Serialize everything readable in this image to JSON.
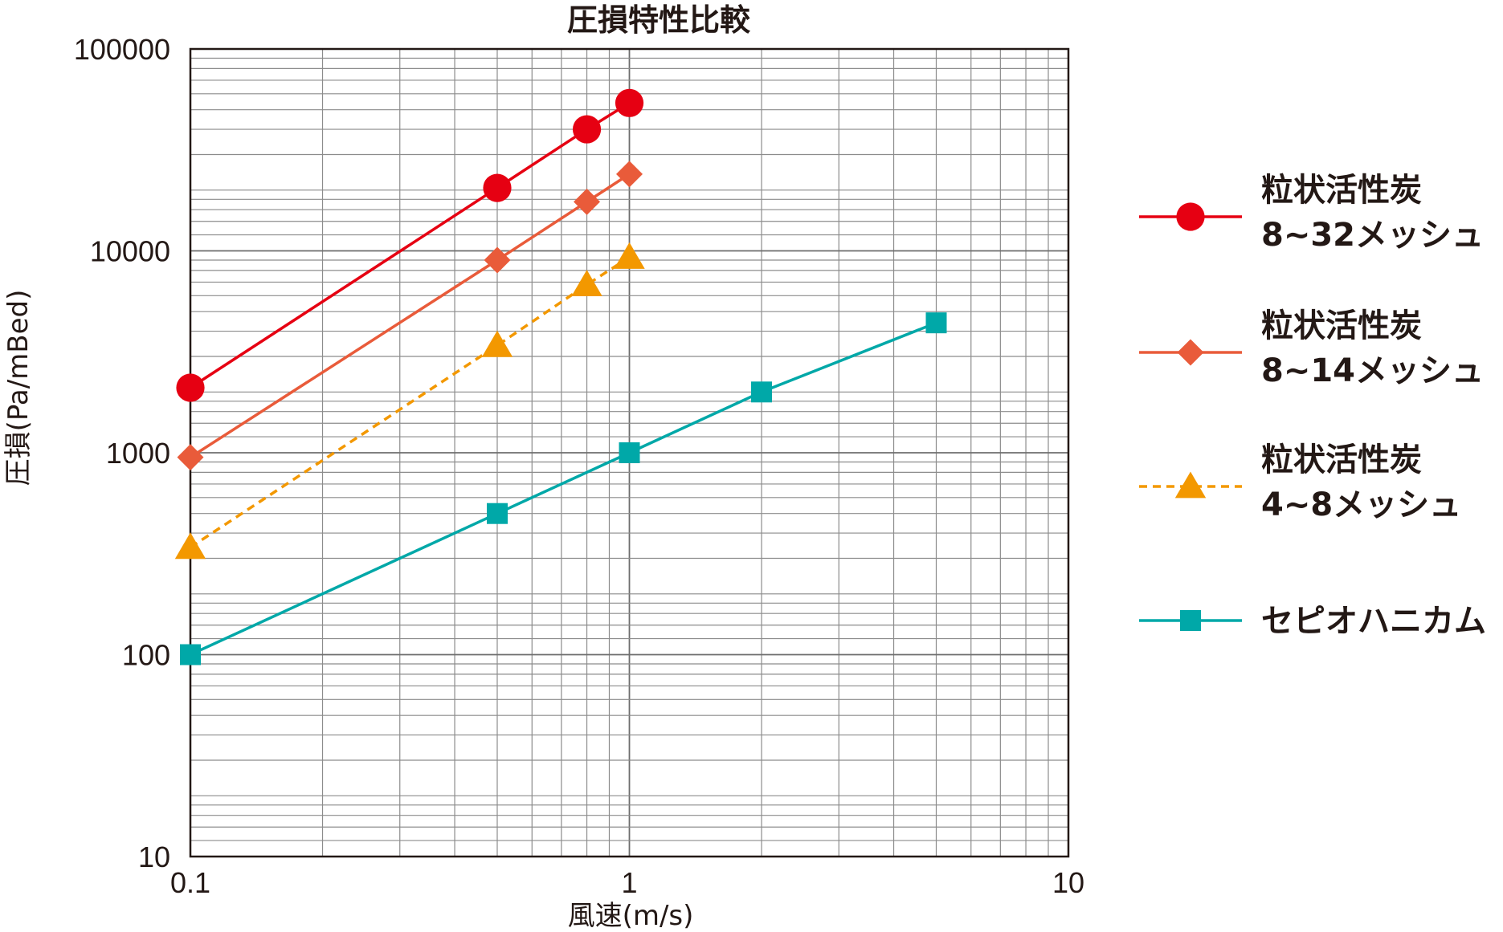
{
  "chart_data": {
    "type": "line",
    "title": "圧損特性比較",
    "xlabel": "風速(m/s)",
    "ylabel": "圧損(Pa/mBed)",
    "xscale": "log",
    "yscale": "log",
    "xlim": [
      0.1,
      10
    ],
    "ylim": [
      10,
      100000
    ],
    "x_ticks": [
      "0.1",
      "1",
      "10"
    ],
    "y_ticks": [
      "10",
      "100",
      "1000",
      "10000",
      "100000"
    ],
    "grid": true,
    "legend_position": "right",
    "series": [
      {
        "name_lines": [
          "粒状活性炭",
          "8~32メッシュ"
        ],
        "color": "#e60012",
        "marker": "circle",
        "dash": "solid",
        "points": [
          [
            0.1,
            2100
          ],
          [
            0.5,
            20500
          ],
          [
            0.8,
            40000
          ],
          [
            1,
            54000
          ]
        ]
      },
      {
        "name_lines": [
          "粒状活性炭",
          "8~14メッシュ"
        ],
        "color": "#e95b3a",
        "marker": "diamond",
        "dash": "solid",
        "points": [
          [
            0.1,
            950
          ],
          [
            0.5,
            9000
          ],
          [
            0.8,
            17500
          ],
          [
            1,
            24000
          ]
        ]
      },
      {
        "name_lines": [
          "粒状活性炭",
          "4~8メッシュ"
        ],
        "color": "#f39800",
        "marker": "triangle",
        "dash": "dashed",
        "points": [
          [
            0.1,
            340
          ],
          [
            0.5,
            3400
          ],
          [
            0.8,
            6800
          ],
          [
            1,
            9300
          ]
        ]
      },
      {
        "name_lines": [
          "セピオハニカム"
        ],
        "color": "#00a8a8",
        "marker": "square",
        "dash": "solid",
        "points": [
          [
            0.1,
            100
          ],
          [
            0.5,
            500
          ],
          [
            1,
            1000
          ],
          [
            2,
            2000
          ],
          [
            5,
            4400
          ]
        ]
      }
    ]
  }
}
